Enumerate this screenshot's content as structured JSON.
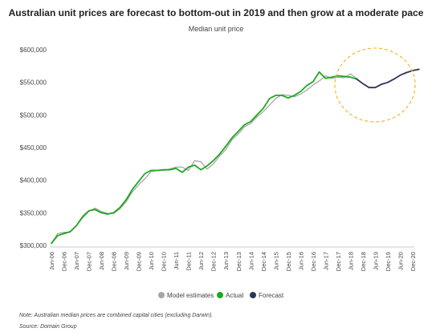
{
  "chart_data": {
    "type": "line",
    "title": "Australian unit prices are forecast to bottom-out in 2019 and then grow at a moderate pace",
    "subtitle": "Median unit price",
    "xlabel": "",
    "ylabel": "",
    "ylim": [
      300000,
      600000
    ],
    "yticks": [
      300000,
      350000,
      400000,
      450000,
      500000,
      550000,
      600000
    ],
    "ytick_labels": [
      "$300,000",
      "$350,000",
      "$400,000",
      "$450,000",
      "$500,000",
      "$550,000",
      "$600,000"
    ],
    "xticks": [
      "Jun-06",
      "Dec-06",
      "Jun-07",
      "Dec-07",
      "Jun-08",
      "Dec-08",
      "Jun-09",
      "Dec-09",
      "Jun-10",
      "Dec-10",
      "Jun-11",
      "Dec-11",
      "Jun-12",
      "Dec-12",
      "Jun-13",
      "Dec-13",
      "Jun-14",
      "Dec-14",
      "Jun-15",
      "Dec-15",
      "Jun-16",
      "Dec-16",
      "Jun-17",
      "Dec-17",
      "Jun-18",
      "Dec-18",
      "Jun-19",
      "Dec-19",
      "Jun-20",
      "Dec-20"
    ],
    "x_start": "Jun-06",
    "x_step": "quarter",
    "legend_position": "bottom",
    "grid": false,
    "series": [
      {
        "name": "Model estimates",
        "color": "#a6a6a6",
        "values": [
          303000,
          318000,
          320000,
          320000,
          330000,
          342000,
          352000,
          357000,
          352000,
          349000,
          349000,
          356000,
          367000,
          382000,
          393000,
          402000,
          413000,
          415000,
          415000,
          417000,
          420000,
          420000,
          415000,
          430000,
          428000,
          417000,
          425000,
          437000,
          447000,
          462000,
          471000,
          482000,
          487000,
          497000,
          505000,
          515000,
          525000,
          531000,
          530000,
          528000,
          532000,
          538000,
          546000,
          552000,
          560000,
          556000,
          558000,
          557000,
          563000,
          556000
        ]
      },
      {
        "name": "Actual",
        "color": "#1fa81f",
        "values": [
          303000,
          315000,
          318000,
          321000,
          330000,
          344000,
          353000,
          355000,
          350000,
          348000,
          350000,
          358000,
          370000,
          386000,
          398000,
          410000,
          415000,
          415000,
          416000,
          416000,
          418000,
          412000,
          420000,
          423000,
          416000,
          422000,
          430000,
          440000,
          452000,
          465000,
          475000,
          485000,
          490000,
          500000,
          510000,
          525000,
          530000,
          530000,
          526000,
          530000,
          536000,
          545000,
          551000,
          566000,
          556000,
          558000,
          560000,
          559000,
          558000,
          555000
        ]
      },
      {
        "name": "Forecast",
        "color": "#2c3557",
        "x_offset": 49,
        "values": [
          555000,
          548000,
          542000,
          542000,
          547000,
          550000,
          555000,
          561000,
          565000,
          568000,
          570000
        ]
      }
    ]
  }
}
